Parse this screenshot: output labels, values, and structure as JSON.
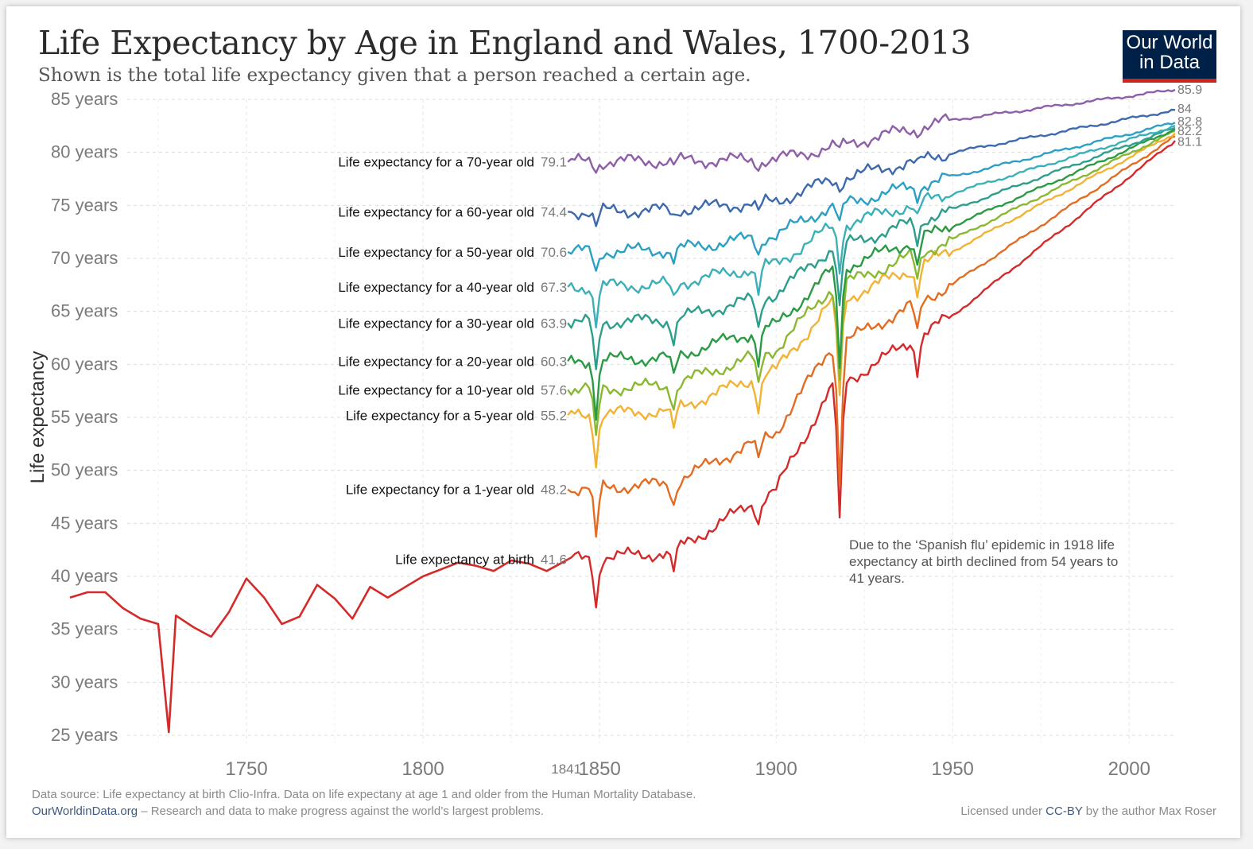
{
  "title": "Life Expectancy by Age in England and Wales, 1700-2013",
  "subtitle": "Shown is the total life expectancy given that a person reached a certain age.",
  "logo": {
    "line1": "Our World",
    "line2": "in Data",
    "bg_color": "#002147",
    "accent_color": "#ce261e"
  },
  "footer": {
    "source": "Data source: Life expectancy at birth Clio-Infra. Data on life expectany at age 1 and older from the Human Mortality Database.",
    "site_link": "OurWorldinData.org",
    "site_text": " – Research and data to make progress against the world’s largest problems.",
    "license_prefix": "Licensed under ",
    "license_link": "CC-BY",
    "license_suffix": " by the author Max Roser"
  },
  "chart_data": {
    "type": "line",
    "ylabel": "Life expectancy",
    "xlim": [
      1700,
      2013
    ],
    "ylim": [
      25,
      85
    ],
    "y_ticks": [
      25,
      30,
      35,
      40,
      45,
      50,
      55,
      60,
      65,
      70,
      75,
      80,
      85
    ],
    "y_tick_suffix": " years",
    "x_ticks": [
      1750,
      1800,
      1850,
      1900,
      1950,
      2000
    ],
    "x_extra_tick": "1841",
    "grid": true,
    "annotation": {
      "lines": [
        "Due to the ‘Spanish flu’ epidemic in 1918 life",
        "expectancy at birth declined from 54 years to",
        "41 years."
      ]
    },
    "end_labels": [
      "85.9",
      "84",
      "82.8",
      "82.2",
      "81.1"
    ],
    "birth_early": {
      "x": [
        1700,
        1705,
        1710,
        1715,
        1720,
        1725,
        1728,
        1730,
        1735,
        1740,
        1745,
        1750,
        1755,
        1760,
        1765,
        1770,
        1775,
        1780,
        1785,
        1790,
        1795,
        1800,
        1810,
        1815,
        1820,
        1825,
        1830,
        1835,
        1840,
        1841
      ],
      "values": [
        38,
        38.5,
        38.5,
        37,
        36,
        35.5,
        25.3,
        36.3,
        35.2,
        34.3,
        36.6,
        39.8,
        38,
        35.5,
        36.2,
        39.2,
        37.9,
        36,
        39,
        38,
        39,
        40,
        41.3,
        41,
        40.5,
        41.5,
        41.2,
        40.5,
        41.4,
        41.6
      ]
    },
    "series": [
      {
        "name": "Life expectancy for a 70-year old",
        "start_label": "79.1",
        "color": "#8e5ea8",
        "start": 79.1,
        "end": 85.9,
        "dips": [
          [
            1849,
            0.7
          ],
          [
            1871,
            0.4
          ],
          [
            1895,
            0.5
          ],
          [
            1918,
            0.5
          ],
          [
            1940,
            0.3
          ]
        ]
      },
      {
        "name": "Life expectancy for a 60-year old",
        "start_label": "74.4",
        "color": "#3d69ad",
        "start": 74.4,
        "end": 84,
        "dips": [
          [
            1849,
            1.5
          ],
          [
            1871,
            0.6
          ],
          [
            1895,
            1.0
          ],
          [
            1918,
            0.8
          ],
          [
            1940,
            0.5
          ]
        ]
      },
      {
        "name": "Life expectancy for a 50-year old",
        "start_label": "70.6",
        "color": "#2ca0c4",
        "start": 70.6,
        "end": 82.8,
        "dips": [
          [
            1849,
            2
          ],
          [
            1871,
            1
          ],
          [
            1895,
            1.5
          ],
          [
            1918,
            2
          ],
          [
            1940,
            1
          ]
        ]
      },
      {
        "name": "Life expectancy for a 40-year old",
        "start_label": "67.3",
        "color": "#3bb0b8",
        "start": 67.3,
        "end": 82.5,
        "dips": [
          [
            1849,
            3.5
          ],
          [
            1871,
            1.5
          ],
          [
            1895,
            2.5
          ],
          [
            1918,
            4
          ],
          [
            1940,
            1.5
          ]
        ]
      },
      {
        "name": "Life expectancy for a 30-year old",
        "start_label": "63.9",
        "color": "#2e9e8c",
        "start": 63.9,
        "end": 82.3,
        "dips": [
          [
            1849,
            5
          ],
          [
            1871,
            2
          ],
          [
            1895,
            3
          ],
          [
            1918,
            6
          ],
          [
            1940,
            2
          ]
        ]
      },
      {
        "name": "Life expectancy for a 20-year old",
        "start_label": "60.3",
        "color": "#2a9a44",
        "start": 60.3,
        "end": 82.2,
        "dips": [
          [
            1849,
            5
          ],
          [
            1871,
            2
          ],
          [
            1895,
            3
          ],
          [
            1918,
            9
          ],
          [
            1940,
            2.5
          ]
        ]
      },
      {
        "name": "Life expectancy for a 10-year old",
        "start_label": "57.6",
        "color": "#8ab832",
        "start": 57.6,
        "end": 82,
        "dips": [
          [
            1849,
            5
          ],
          [
            1871,
            2
          ],
          [
            1895,
            3
          ],
          [
            1918,
            9
          ],
          [
            1940,
            2.5
          ]
        ]
      },
      {
        "name": "Life expectancy for a 5-year old",
        "start_label": "55.2",
        "color": "#f2b234",
        "start": 55.2,
        "end": 81.8,
        "dips": [
          [
            1849,
            4.5
          ],
          [
            1871,
            2
          ],
          [
            1895,
            3
          ],
          [
            1918,
            9
          ],
          [
            1940,
            2.5
          ]
        ]
      },
      {
        "name": "Life expectancy for a 1-year old",
        "start_label": "48.2",
        "color": "#e36c23",
        "start": 48.2,
        "end": 81.5,
        "dips": [
          [
            1849,
            5
          ],
          [
            1871,
            2
          ],
          [
            1895,
            2
          ],
          [
            1918,
            13
          ],
          [
            1940,
            3
          ]
        ]
      },
      {
        "name": "Life expectancy at birth",
        "start_label": "41.6",
        "color": "#d42a2a",
        "start": 41.6,
        "end": 81.1,
        "dips": [
          [
            1849,
            4.5
          ],
          [
            1871,
            2
          ],
          [
            1895,
            2
          ],
          [
            1918,
            13
          ],
          [
            1940,
            3
          ]
        ]
      }
    ]
  }
}
